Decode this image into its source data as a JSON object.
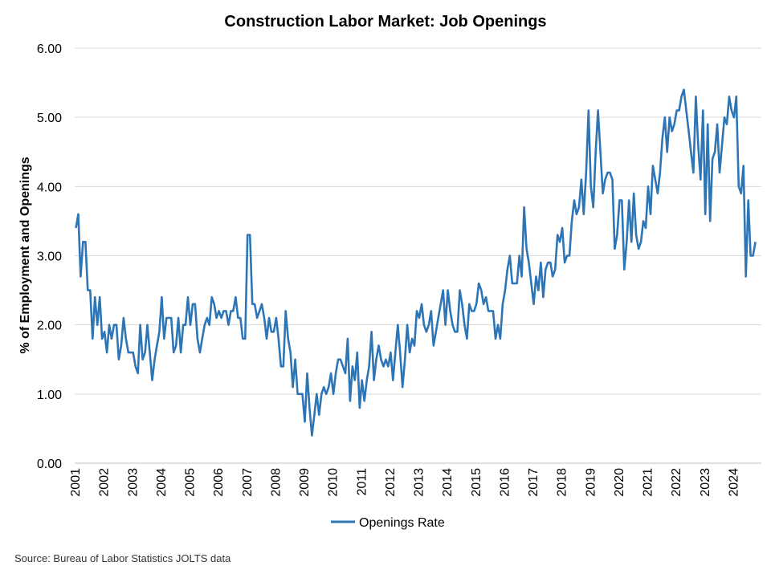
{
  "chart_data": {
    "type": "line",
    "title": "Construction Labor Market: Job Openings",
    "ylabel": "% of Employment and Openings",
    "xlabel": "",
    "ylim": [
      0,
      6
    ],
    "yticks": [
      "0.00",
      "1.00",
      "2.00",
      "3.00",
      "4.00",
      "5.00",
      "6.00"
    ],
    "xticks": [
      "2001",
      "2002",
      "2003",
      "2004",
      "2005",
      "2006",
      "2007",
      "2008",
      "2009",
      "2010",
      "2011",
      "2012",
      "2013",
      "2014",
      "2015",
      "2016",
      "2017",
      "2018",
      "2019",
      "2020",
      "2021",
      "2022",
      "2023",
      "2024"
    ],
    "x_start": "2001-01",
    "x_frequency": "monthly",
    "grid": true,
    "legend": "bottom",
    "series": [
      {
        "name": "Openings Rate",
        "color": "#2e75b6",
        "values": [
          3.4,
          3.6,
          2.7,
          3.2,
          3.2,
          2.5,
          2.5,
          1.8,
          2.4,
          2.0,
          2.4,
          1.8,
          1.9,
          1.6,
          2.0,
          1.8,
          2.0,
          2.0,
          1.5,
          1.7,
          2.1,
          1.8,
          1.6,
          1.6,
          1.6,
          1.4,
          1.3,
          2.0,
          1.5,
          1.6,
          2.0,
          1.6,
          1.2,
          1.5,
          1.7,
          1.9,
          2.4,
          1.8,
          2.1,
          2.1,
          2.1,
          1.6,
          1.7,
          2.1,
          1.6,
          2.0,
          2.0,
          2.4,
          2.0,
          2.3,
          2.3,
          1.8,
          1.6,
          1.8,
          2.0,
          2.1,
          2.0,
          2.4,
          2.3,
          2.1,
          2.2,
          2.1,
          2.2,
          2.2,
          2.0,
          2.2,
          2.2,
          2.4,
          2.1,
          2.1,
          1.8,
          1.8,
          3.3,
          3.3,
          2.3,
          2.3,
          2.1,
          2.2,
          2.3,
          2.1,
          1.8,
          2.1,
          1.9,
          1.9,
          2.1,
          1.8,
          1.4,
          1.4,
          2.2,
          1.8,
          1.6,
          1.1,
          1.5,
          1.0,
          1.0,
          1.0,
          0.6,
          1.3,
          0.8,
          0.4,
          0.7,
          1.0,
          0.7,
          1.0,
          1.1,
          1.0,
          1.1,
          1.3,
          1.0,
          1.3,
          1.5,
          1.5,
          1.4,
          1.3,
          1.8,
          0.9,
          1.4,
          1.2,
          1.6,
          0.8,
          1.2,
          0.9,
          1.2,
          1.4,
          1.9,
          1.2,
          1.5,
          1.7,
          1.5,
          1.4,
          1.5,
          1.4,
          1.6,
          1.2,
          1.6,
          2.0,
          1.6,
          1.1,
          1.5,
          2.0,
          1.6,
          1.8,
          1.7,
          2.2,
          2.1,
          2.3,
          2.0,
          1.9,
          2.0,
          2.2,
          1.7,
          1.9,
          2.1,
          2.3,
          2.5,
          2.0,
          2.5,
          2.2,
          2.0,
          1.9,
          1.9,
          2.5,
          2.3,
          2.0,
          1.8,
          2.3,
          2.2,
          2.2,
          2.3,
          2.6,
          2.5,
          2.3,
          2.4,
          2.2,
          2.2,
          2.2,
          1.8,
          2.0,
          1.8,
          2.3,
          2.5,
          2.8,
          3.0,
          2.6,
          2.6,
          2.6,
          3.0,
          2.7,
          3.7,
          3.1,
          2.9,
          2.6,
          2.3,
          2.7,
          2.5,
          2.9,
          2.4,
          2.8,
          2.9,
          2.9,
          2.7,
          2.8,
          3.3,
          3.2,
          3.4,
          2.9,
          3.0,
          3.0,
          3.5,
          3.8,
          3.6,
          3.7,
          4.1,
          3.6,
          4.2,
          5.1,
          4.0,
          3.7,
          4.5,
          5.1,
          4.5,
          3.9,
          4.1,
          4.2,
          4.2,
          4.1,
          3.1,
          3.3,
          3.8,
          3.8,
          2.8,
          3.2,
          3.8,
          3.2,
          3.9,
          3.3,
          3.1,
          3.2,
          3.5,
          3.4,
          4.0,
          3.6,
          4.3,
          4.1,
          3.9,
          4.2,
          4.7,
          5.0,
          4.5,
          5.0,
          4.8,
          4.9,
          5.1,
          5.1,
          5.3,
          5.4,
          5.1,
          4.8,
          4.5,
          4.2,
          5.3,
          4.6,
          4.1,
          5.1,
          3.6,
          4.9,
          3.5,
          4.4,
          4.5,
          4.9,
          4.2,
          4.6,
          5.0,
          4.9,
          5.3,
          5.1,
          5.0,
          5.3,
          4.0,
          3.9,
          4.3,
          2.7,
          3.8,
          3.0,
          3.0,
          3.2
        ]
      }
    ],
    "source": "Source:  Bureau of Labor Statistics JOLTS data"
  }
}
